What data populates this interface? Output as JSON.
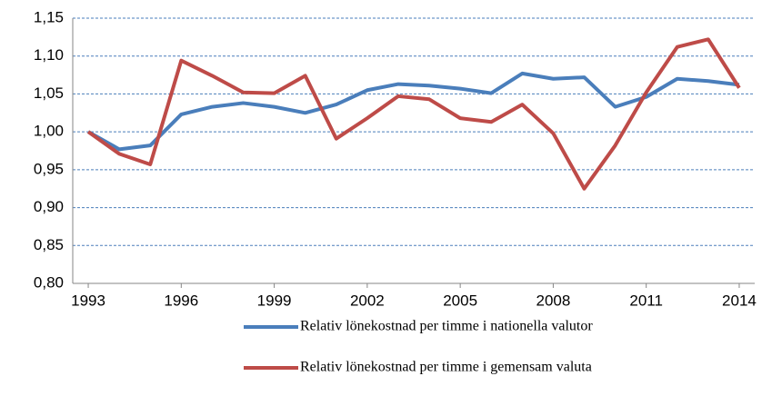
{
  "chart_data": {
    "type": "line",
    "x": [
      1993,
      1994,
      1995,
      1996,
      1997,
      1998,
      1999,
      2000,
      2001,
      2002,
      2003,
      2004,
      2005,
      2006,
      2007,
      2008,
      2009,
      2010,
      2011,
      2012,
      2013,
      2014
    ],
    "series": [
      {
        "name": "Relativ lönekostnad per timme i nationella valutor",
        "color": "#4a7ebb",
        "values": [
          1.0,
          0.977,
          0.982,
          1.023,
          1.033,
          1.038,
          1.033,
          1.025,
          1.036,
          1.055,
          1.063,
          1.061,
          1.057,
          1.051,
          1.077,
          1.07,
          1.072,
          1.033,
          1.046,
          1.07,
          1.067,
          1.062
        ]
      },
      {
        "name": "Relativ lönekostnad per timme i gemensam valuta",
        "color": "#be4b48",
        "values": [
          1.0,
          0.971,
          0.957,
          1.094,
          1.074,
          1.052,
          1.051,
          1.074,
          0.991,
          1.018,
          1.047,
          1.043,
          1.018,
          1.013,
          1.036,
          0.998,
          0.925,
          0.982,
          1.052,
          1.112,
          1.122,
          1.058
        ]
      }
    ],
    "xlim": [
      1992.5,
      2014.5
    ],
    "xticks": [
      1993,
      1996,
      1999,
      2002,
      2005,
      2008,
      2011,
      2014
    ],
    "ylim": [
      0.8,
      1.15
    ],
    "yticks": [
      {
        "value": 0.8,
        "label": "0,80"
      },
      {
        "value": 0.85,
        "label": "0,85"
      },
      {
        "value": 0.9,
        "label": "0,90"
      },
      {
        "value": 0.95,
        "label": "0,95"
      },
      {
        "value": 1.0,
        "label": "1,00"
      },
      {
        "value": 1.05,
        "label": "1,05"
      },
      {
        "value": 1.1,
        "label": "1,10"
      },
      {
        "value": 1.15,
        "label": "1,15"
      }
    ],
    "grid": true,
    "legend": "bottom"
  }
}
